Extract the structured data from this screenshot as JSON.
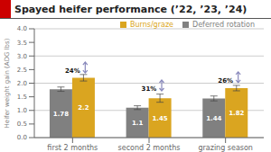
{
  "chart_data": {
    "type": "bar",
    "title": "Spayed heifer performance (’22, ’23, ’24)",
    "categories": [
      "first 2 months",
      "second 2 months",
      "grazing season"
    ],
    "series": [
      {
        "name": "Deferred rotation",
        "color": "#808080",
        "values": [
          1.78,
          1.1,
          1.44
        ],
        "errors": [
          0.08,
          0.07,
          0.09
        ]
      },
      {
        "name": "Burns/graze",
        "color": "#DAA520",
        "values": [
          2.2,
          1.45,
          1.82
        ],
        "errors": [
          0.12,
          0.15,
          0.1
        ]
      }
    ],
    "ylabel": "Heifer weight gain (ADG lbs)",
    "ylim": [
      0.0,
      4.0
    ],
    "yticks": [
      {
        "value": 0.0,
        "label": "0.0"
      },
      0.5,
      {
        "value": 1.0,
        "label": "1.0"
      },
      1.5,
      {
        "value": 2.0,
        "label": "2.0"
      },
      2.5,
      {
        "value": 3.0,
        "label": "3.0"
      },
      3.5,
      {
        "value": 4.0,
        "label": "4.0"
      }
    ],
    "grid": true,
    "legend": "upper right",
    "data_labels": true,
    "annotations": [
      {
        "text": "24%",
        "x": "first 2 months",
        "y": 2.28
      },
      {
        "text": "31%",
        "x": "second 2 months",
        "y": 1.62
      },
      {
        "text": "26%",
        "x": "grazing season",
        "y": 1.92
      }
    ],
    "title_bar_color": "#cc0000"
  }
}
